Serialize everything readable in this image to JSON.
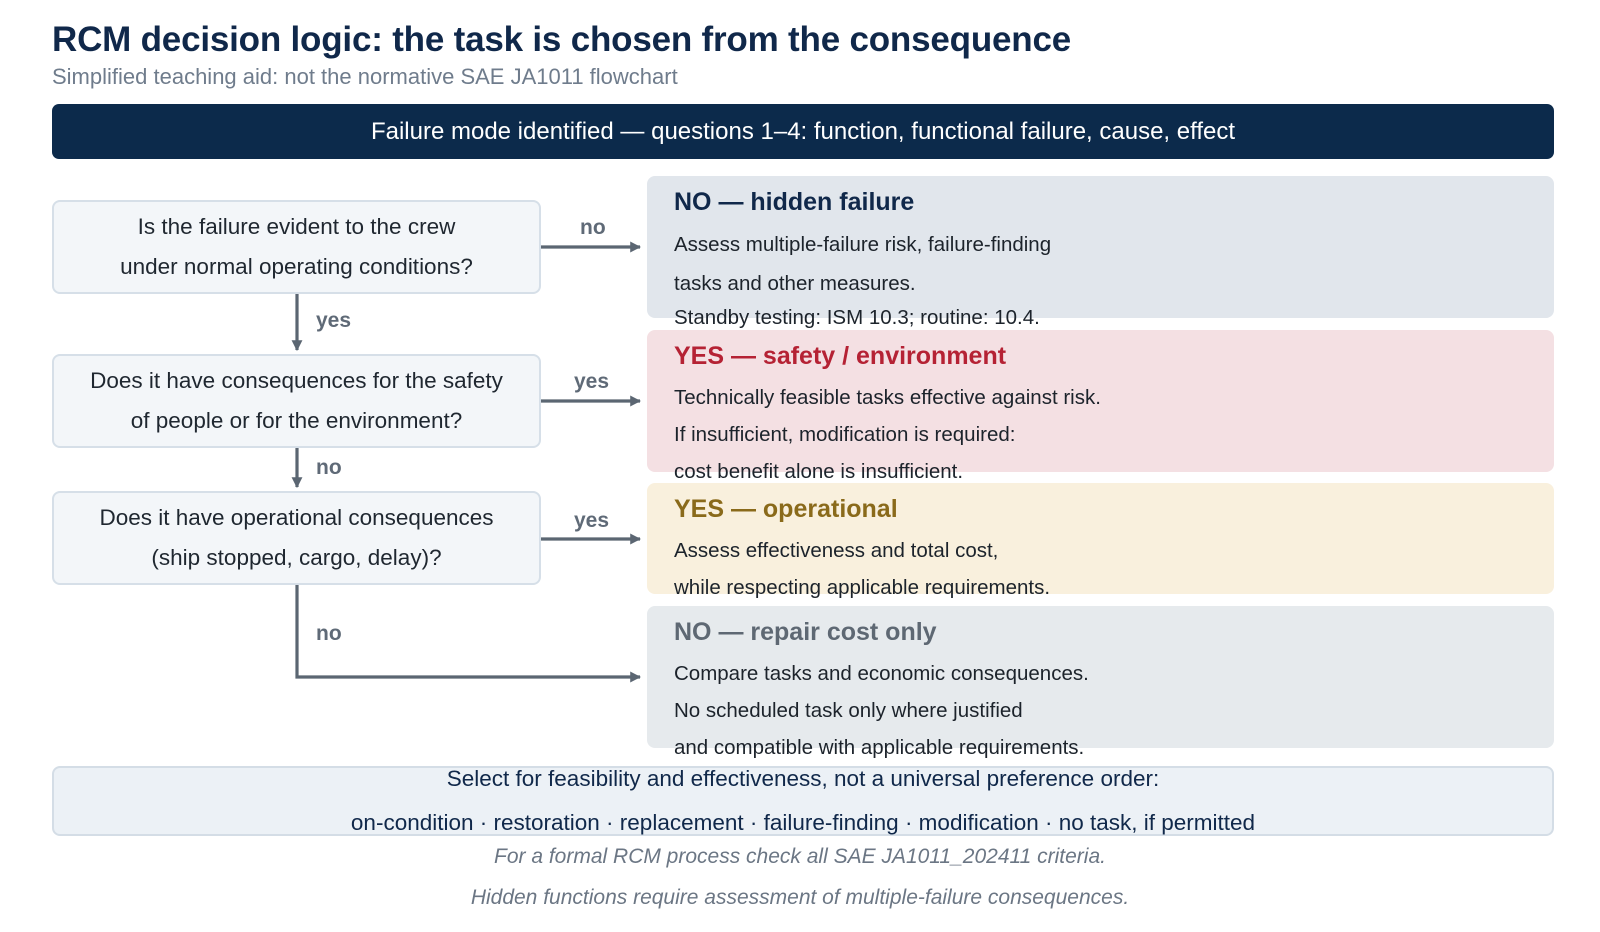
{
  "header": {
    "title": "RCM decision logic: the task is chosen from the consequence",
    "subtitle": "Simplified teaching aid: not the normative SAE JA1011 flowchart"
  },
  "banner": "Failure mode identified — questions 1–4: function, functional failure, cause, effect",
  "questions": [
    {
      "lines": [
        "Is the failure evident to the crew",
        "under normal operating conditions?"
      ]
    },
    {
      "lines": [
        "Does it have consequences for the safety",
        "of people or for the environment?"
      ]
    },
    {
      "lines": [
        "Does it have operational consequences",
        "(ship stopped, cargo, delay)?"
      ]
    }
  ],
  "edge_labels": {
    "q1_right": "no",
    "q1_down": "yes",
    "q2_right": "yes",
    "q2_down": "no",
    "q3_right": "yes",
    "q3_down": "no"
  },
  "outcomes": [
    {
      "title": "NO — hidden failure",
      "color": "#10284a",
      "background": "#e1e6ec",
      "lines": [
        "Assess multiple-failure risk, failure-finding",
        "tasks and other measures.",
        "Standby testing: ISM 10.3; routine: 10.4."
      ]
    },
    {
      "title": "YES — safety / environment",
      "color": "#b52234",
      "background": "#f4e0e3",
      "lines": [
        "Technically feasible tasks effective against risk.",
        "If insufficient, modification is required:",
        "cost benefit alone is insufficient."
      ]
    },
    {
      "title": "YES — operational",
      "color": "#8a6a1a",
      "background": "#f9f0dd",
      "lines": [
        "Assess effectiveness and total cost,",
        "while respecting applicable requirements."
      ]
    },
    {
      "title": "NO — repair cost only",
      "color": "#5e6873",
      "background": "#e6eaed",
      "lines": [
        "Compare tasks and economic consequences.",
        "No scheduled task only where justified",
        "and compatible with applicable requirements."
      ]
    }
  ],
  "selection": {
    "line1": "Select for feasibility and effectiveness, not a universal preference order:",
    "line2": "on-condition · restoration · replacement · failure-finding · modification · no task, if permitted"
  },
  "notes": [
    "For a formal RCM process check all SAE JA1011_202411 criteria.",
    "Hidden functions require assessment of multiple-failure consequences."
  ],
  "colors": {
    "banner": "#0c2a4b",
    "arrow": "#5b6672",
    "question_fill": "#f3f6f9",
    "question_border": "#d6dfe8"
  }
}
